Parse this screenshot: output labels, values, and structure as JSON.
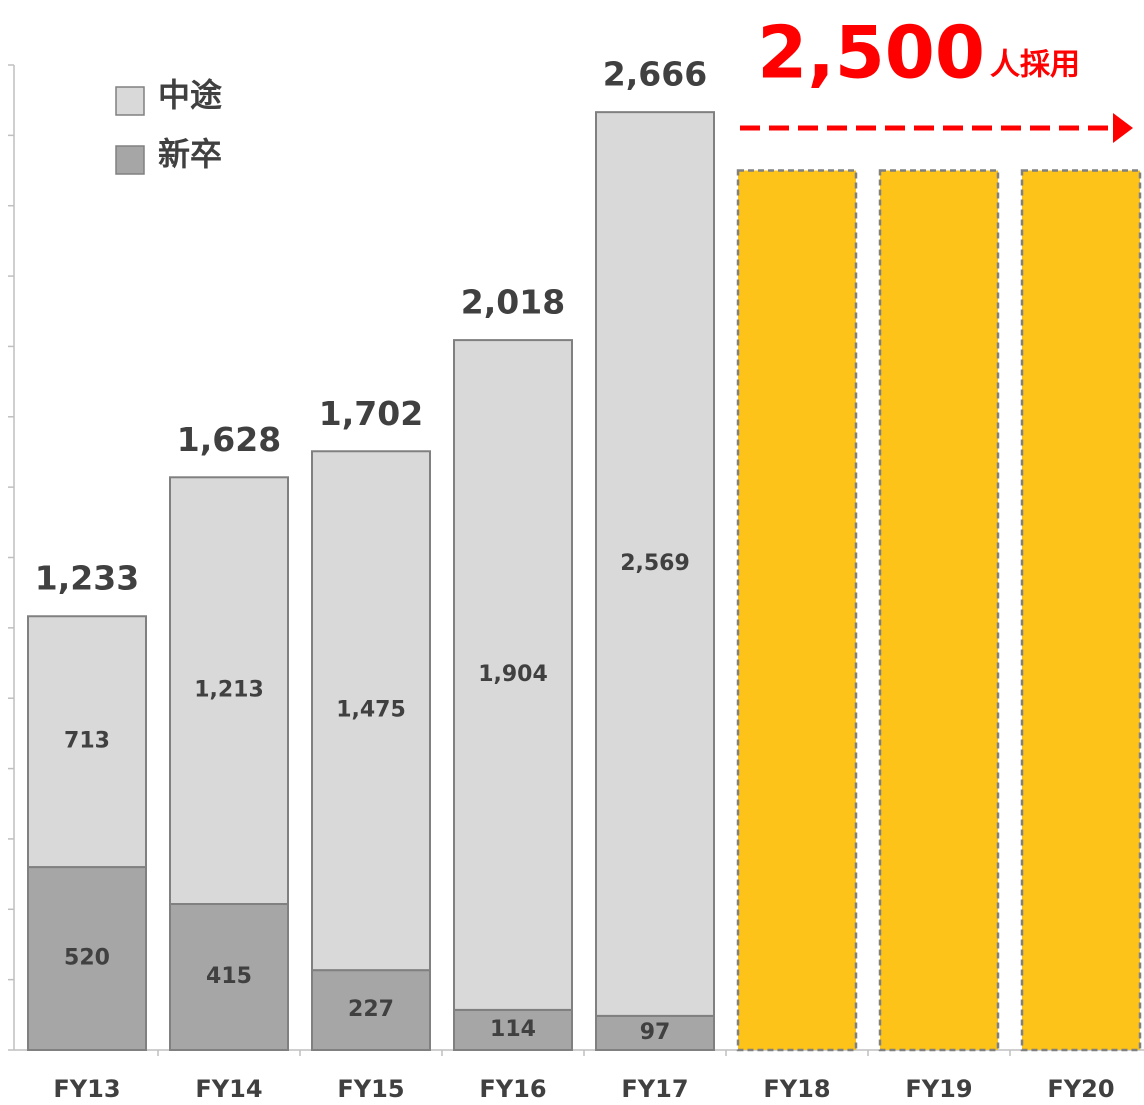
{
  "chart_data": {
    "type": "stacked_bar",
    "categories": [
      "FY13",
      "FY14",
      "FY15",
      "FY16",
      "FY17",
      "FY18",
      "FY19",
      "FY20"
    ],
    "series": [
      {
        "name": "新卒",
        "color": "#a6a6a6",
        "values": [
          520,
          415,
          227,
          114,
          97,
          null,
          null,
          null
        ],
        "value_labels": [
          "520",
          "415",
          "227",
          "114",
          "97",
          null,
          null,
          null
        ]
      },
      {
        "name": "中途",
        "color": "#d9d9d9",
        "values": [
          713,
          1213,
          1475,
          1904,
          2569,
          null,
          null,
          null
        ],
        "value_labels": [
          "713",
          "1,213",
          "1,475",
          "1,904",
          "2,569",
          null,
          null,
          null
        ]
      }
    ],
    "totals": [
      1233,
      1628,
      1702,
      2018,
      2666,
      null,
      null,
      null
    ],
    "total_labels": [
      "1,233",
      "1,628",
      "1,702",
      "2,018",
      "2,666",
      null,
      null,
      null
    ],
    "target": {
      "color": "#fdc318",
      "values": [
        null,
        null,
        null,
        null,
        null,
        2500,
        2500,
        2500
      ]
    },
    "annotation": {
      "text": "2,500",
      "unit": "人採用"
    },
    "ylim": [
      0,
      2800
    ],
    "yticks": [
      0,
      200,
      400,
      600,
      800,
      1000,
      1200,
      1400,
      1600,
      1800,
      2000,
      2200,
      2400,
      2600,
      2800
    ],
    "legend": "top-left"
  }
}
